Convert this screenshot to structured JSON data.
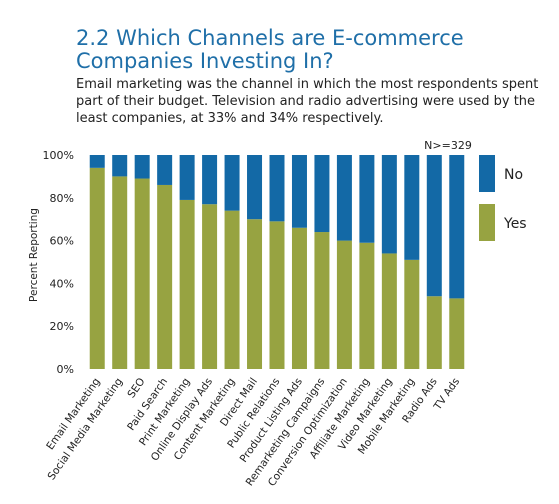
{
  "title": "2.2 Which Channels are E-commerce Companies Investing In?",
  "description": "Email marketing was the channel in which the most respondents spent part of their budget. Television and radio advertising were used by the least companies, at 33% and 34% respectively.",
  "colors": {
    "no": "#1369a6",
    "yes": "#97a341",
    "title": "#1f6fa8"
  },
  "chart_data": {
    "type": "bar",
    "stacked": true,
    "categories": [
      "Email Marketing",
      "Social Media Marketing",
      "SEO",
      "Paid Search",
      "Print Marketing",
      "Online Display Ads",
      "Content Marketing",
      "Direct Mail",
      "Public Relations",
      "Product Listing Ads",
      "Remarketing Campaigns",
      "Conversion Optimization",
      "Affiliate Marketing",
      "Video Marketing",
      "Mobile Marketing",
      "Radio Ads",
      "TV Ads"
    ],
    "series": [
      {
        "name": "Yes",
        "values": [
          94,
          90,
          89,
          86,
          79,
          77,
          74,
          70,
          69,
          66,
          64,
          60,
          59,
          54,
          51,
          34,
          33
        ]
      },
      {
        "name": "No",
        "values": [
          6,
          10,
          11,
          14,
          21,
          23,
          26,
          30,
          31,
          34,
          36,
          40,
          41,
          46,
          49,
          66,
          67
        ]
      }
    ],
    "ylabel": "Percent Reporting",
    "ylim": [
      0,
      100
    ],
    "yticks": [
      "0%",
      "20%",
      "40%",
      "60%",
      "80%",
      "100%"
    ],
    "annotation": "N>=329",
    "legend": {
      "placement": "right",
      "entries": [
        "No",
        "Yes"
      ]
    },
    "grid": false
  }
}
